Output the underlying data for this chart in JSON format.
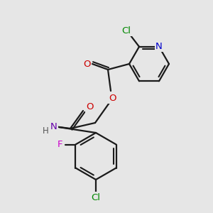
{
  "background_color": "#e6e6e6",
  "bond_color": "#1a1a1a",
  "atom_colors": {
    "N_pyridine": "#0000cc",
    "N_amide": "#6600aa",
    "O": "#cc0000",
    "Cl": "#008800",
    "F": "#cc00cc",
    "H": "#555555",
    "C": "#1a1a1a"
  },
  "figsize": [
    3.0,
    3.0
  ],
  "dpi": 100
}
